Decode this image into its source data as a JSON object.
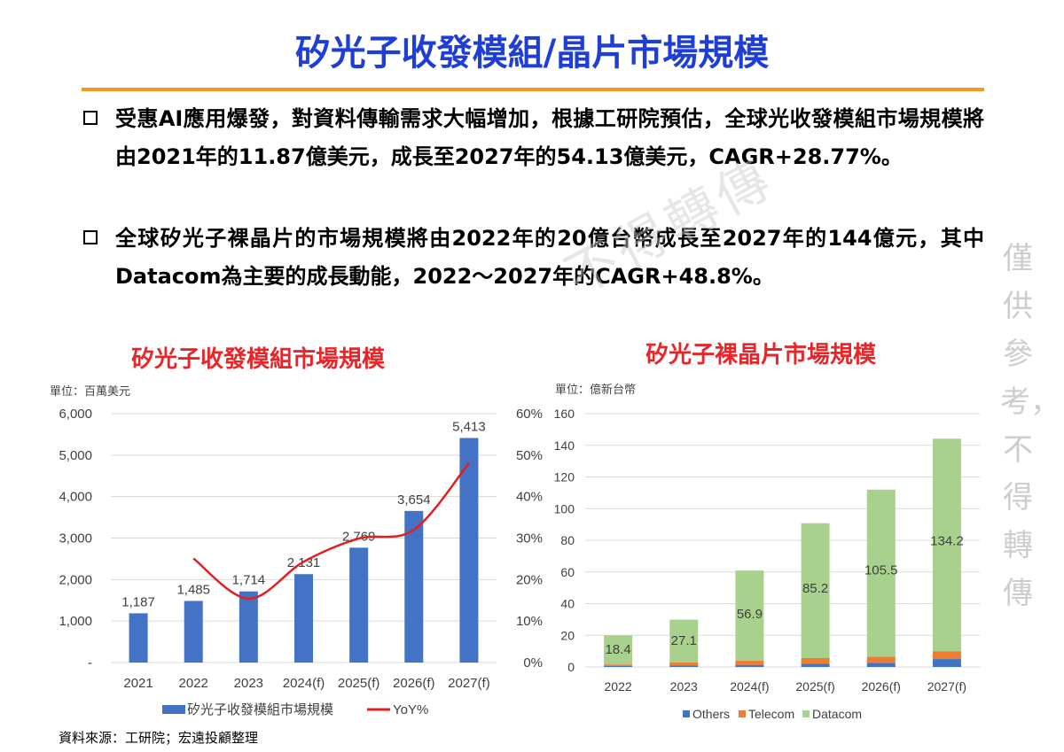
{
  "slide": {
    "title": "矽光子收發模組/晶片市場規模",
    "bullets": [
      "受惠AI應用爆發，對資料傳輸需求大幅增加，根據工研院預估，全球光收發模組市場規模將由2021年的11.87億美元，成長至2027年的54.13億美元，CAGR+28.77%。",
      "全球矽光子裸晶片的市場規模將由2022年的20億台幣成長至2027年的144億元，其中Datacom為主要的成長動能，2022～2027年的CAGR+48.8%。"
    ],
    "watermark": "僅供參考，不得轉傳",
    "watermark_diag": "不得轉傳",
    "source": "資料來源：工研院；宏遠投顧整理"
  },
  "chart_data": [
    {
      "type": "bar",
      "heading": "矽光子收發模組市場規模",
      "unit_note": "單位：百萬美元",
      "categories": [
        "2021",
        "2022",
        "2023",
        "2024(f)",
        "2025(f)",
        "2026(f)",
        "2027(f)"
      ],
      "series": [
        {
          "name": "矽光子收發模組市場規模",
          "color": "#4472c4",
          "values": [
            1187,
            1485,
            1714,
            2131,
            2769,
            3654,
            5413
          ],
          "labels": [
            "1,187",
            "1,485",
            "1,714",
            "2,131",
            "2,769",
            "3,654",
            "5,413"
          ]
        },
        {
          "name": "YoY%",
          "type": "line",
          "axis": "right",
          "color": "#e02020",
          "values": [
            null,
            25.1,
            15.4,
            24.3,
            29.9,
            32.0,
            48.1
          ]
        }
      ],
      "ylim": [
        0,
        6000
      ],
      "yticks": [
        "-",
        "1,000",
        "2,000",
        "3,000",
        "4,000",
        "5,000",
        "6,000"
      ],
      "y2lim": [
        0,
        60
      ],
      "y2ticks": [
        "0%",
        "10%",
        "20%",
        "30%",
        "40%",
        "50%",
        "60%"
      ],
      "grid": true,
      "legend": "bottom"
    },
    {
      "type": "stacked-bar",
      "heading": "矽光子裸晶片市場規模",
      "unit_note": "單位：億新台幣",
      "categories": [
        "2022",
        "2023",
        "2024(f)",
        "2025(f)",
        "2026(f)",
        "2027(f)"
      ],
      "series": [
        {
          "name": "Others",
          "color": "#4472c4",
          "values": [
            0.6,
            1.0,
            1.3,
            2.0,
            2.6,
            5.0
          ]
        },
        {
          "name": "Telecom",
          "color": "#ed7d31",
          "values": [
            1.0,
            1.8,
            2.7,
            3.6,
            3.9,
            5.0
          ]
        },
        {
          "name": "Datacom",
          "color": "#a9d18e",
          "values": [
            18.4,
            27.1,
            56.9,
            85.2,
            105.5,
            134.2
          ],
          "labels": [
            "18.4",
            "27.1",
            "56.9",
            "85.2",
            "105.5",
            "134.2"
          ]
        }
      ],
      "ylim": [
        0,
        160
      ],
      "yticks": [
        "0",
        "20",
        "40",
        "60",
        "80",
        "100",
        "120",
        "140",
        "160"
      ],
      "grid": true,
      "legend": "bottom"
    }
  ]
}
